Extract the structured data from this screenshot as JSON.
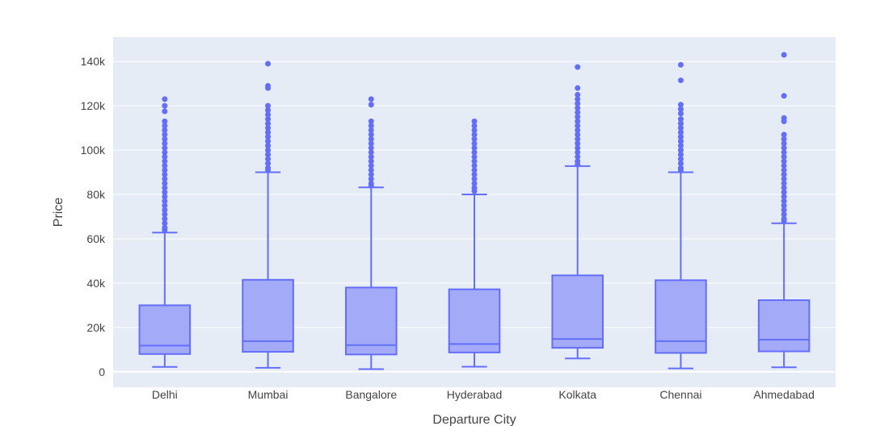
{
  "chart_data": {
    "type": "box",
    "xlabel": "Departure City",
    "ylabel": "Price",
    "ylim": [
      -7000,
      151000
    ],
    "y_ticks": [
      0,
      20000,
      40000,
      60000,
      80000,
      100000,
      120000,
      140000
    ],
    "y_tick_labels": [
      "0",
      "20k",
      "40k",
      "60k",
      "80k",
      "100k",
      "120k",
      "140k"
    ],
    "grid": true,
    "colors": {
      "plot_bg": "#e5ecf6",
      "grid": "#ffffff",
      "box_line": "#636efa",
      "box_fill": "#a3aaf7",
      "outlier": "#636efa"
    },
    "categories": [
      "Delhi",
      "Mumbai",
      "Bangalore",
      "Hyderabad",
      "Kolkata",
      "Chennai",
      "Ahmedabad"
    ],
    "boxes": [
      {
        "name": "Delhi",
        "lowerfence": 2200,
        "q1": 8000,
        "median": 11800,
        "q3": 30000,
        "upperfence": 62800,
        "outliers": [
          123000,
          120000,
          117500,
          113000,
          111000,
          109000,
          107000,
          105000,
          103000,
          101000,
          99000,
          97000,
          95000,
          93000,
          91000,
          89000,
          87000,
          85000,
          83000,
          81000,
          79000,
          77000,
          75000,
          73000,
          71000,
          69000,
          67000,
          65000,
          64000
        ]
      },
      {
        "name": "Mumbai",
        "lowerfence": 1800,
        "q1": 9000,
        "median": 13800,
        "q3": 41500,
        "upperfence": 90000,
        "outliers": [
          139000,
          129000,
          128000,
          120000,
          118000,
          116000,
          114000,
          112000,
          110000,
          108000,
          106000,
          104000,
          102000,
          100000,
          98000,
          96000,
          94000,
          92000,
          91000
        ]
      },
      {
        "name": "Bangalore",
        "lowerfence": 1200,
        "q1": 7800,
        "median": 12000,
        "q3": 38000,
        "upperfence": 83200,
        "outliers": [
          123000,
          120500,
          113000,
          111000,
          109000,
          107000,
          105000,
          103000,
          101000,
          99000,
          97000,
          95000,
          93000,
          91000,
          89000,
          87000,
          85000,
          84000
        ]
      },
      {
        "name": "Hyderabad",
        "lowerfence": 2300,
        "q1": 8700,
        "median": 12500,
        "q3": 37200,
        "upperfence": 80000,
        "outliers": [
          113000,
          111000,
          109000,
          107000,
          105000,
          103000,
          101000,
          99000,
          97000,
          95000,
          93000,
          91000,
          89000,
          87000,
          85000,
          83000,
          81500
        ]
      },
      {
        "name": "Kolkata",
        "lowerfence": 6000,
        "q1": 10800,
        "median": 14800,
        "q3": 43500,
        "upperfence": 92800,
        "outliers": [
          137500,
          128000,
          125000,
          123000,
          121000,
          119000,
          117000,
          115000,
          113000,
          111000,
          109000,
          107000,
          105000,
          103000,
          101000,
          99000,
          97000,
          95000,
          93500
        ]
      },
      {
        "name": "Chennai",
        "lowerfence": 1500,
        "q1": 8500,
        "median": 13800,
        "q3": 41300,
        "upperfence": 90000,
        "outliers": [
          138500,
          131500,
          120500,
          118500,
          116500,
          114000,
          112000,
          110000,
          108000,
          106000,
          104000,
          102000,
          100000,
          98000,
          96000,
          94000,
          92000,
          91000
        ]
      },
      {
        "name": "Ahmedabad",
        "lowerfence": 2000,
        "q1": 9200,
        "median": 14500,
        "q3": 32300,
        "upperfence": 67000,
        "outliers": [
          143000,
          124500,
          114500,
          113000,
          107000,
          105000,
          103000,
          101000,
          99000,
          97000,
          95000,
          93000,
          91000,
          89000,
          87000,
          85000,
          83000,
          81000,
          79000,
          77000,
          75000,
          73000,
          71000,
          69000,
          68000
        ]
      }
    ]
  }
}
